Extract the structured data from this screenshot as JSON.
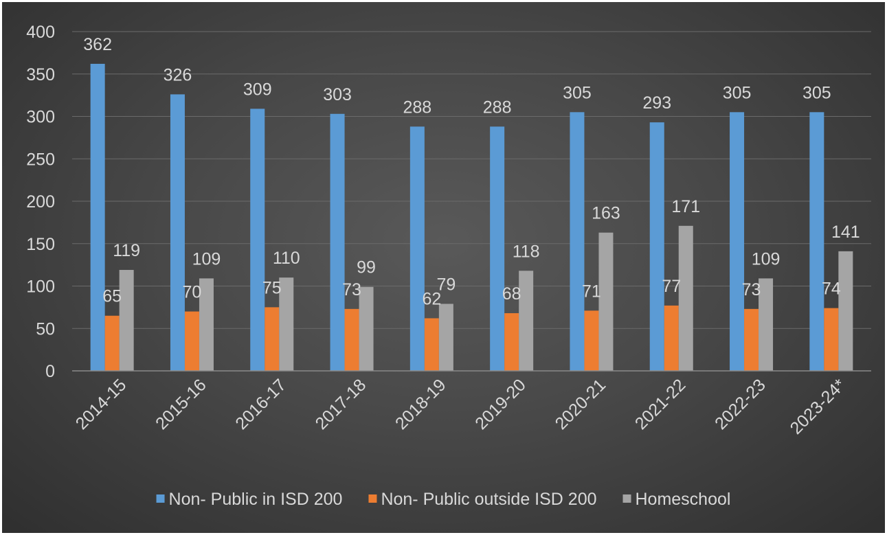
{
  "chart_data": {
    "type": "bar",
    "title": "",
    "xlabel": "",
    "ylabel": "",
    "ylim": [
      0,
      400
    ],
    "yticks": [
      0,
      50,
      100,
      150,
      200,
      250,
      300,
      350,
      400
    ],
    "grid": true,
    "legend_position": "bottom",
    "categories": [
      "2014-15",
      "2015-16",
      "2016-17",
      "2017-18",
      "2018-19",
      "2019-20",
      "2020-21",
      "2021-22",
      "2022-23",
      "2023-24*"
    ],
    "series": [
      {
        "name": "Non- Public in ISD 200",
        "color": "#5b9bd5",
        "values": [
          362,
          326,
          309,
          303,
          288,
          288,
          305,
          293,
          305,
          305
        ]
      },
      {
        "name": "Non- Public outside ISD 200",
        "color": "#ed7d31",
        "values": [
          65,
          70,
          75,
          73,
          62,
          68,
          71,
          77,
          73,
          74
        ]
      },
      {
        "name": "Homeschool",
        "color": "#a5a5a5",
        "values": [
          119,
          109,
          110,
          99,
          79,
          118,
          163,
          171,
          109,
          141
        ]
      }
    ]
  }
}
